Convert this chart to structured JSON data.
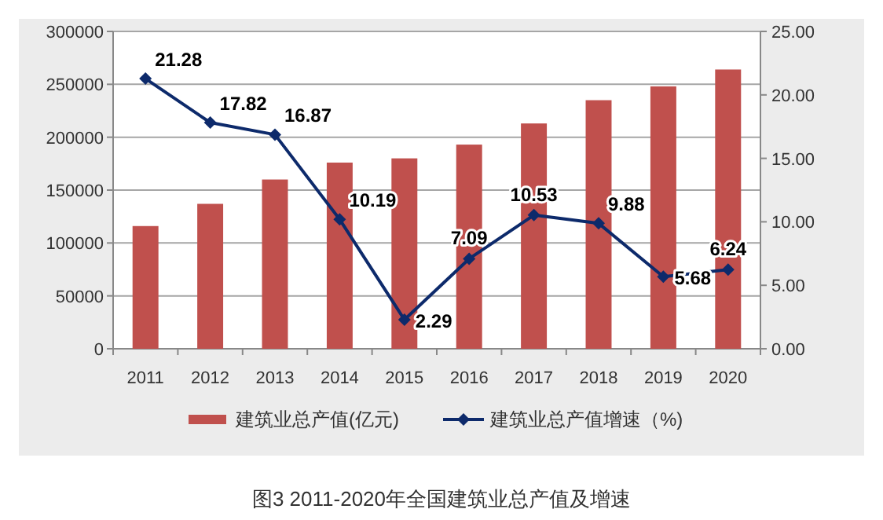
{
  "chart_data": {
    "type": "bar",
    "title": "图3  2011-2020年全国建筑业总产值及增速",
    "categories": [
      "2011",
      "2012",
      "2013",
      "2014",
      "2015",
      "2016",
      "2017",
      "2018",
      "2019",
      "2020"
    ],
    "series": [
      {
        "name": "建筑业总产值(亿元)",
        "color": "#c0504d",
        "values": [
          116000,
          137000,
          160000,
          176000,
          180000,
          193000,
          213000,
          235000,
          248000,
          264000
        ]
      },
      {
        "name": "建筑业总产值增速（%)",
        "type": "line",
        "axis": "y2",
        "color": "#0d2a6b",
        "marker": "diamond",
        "data_labels": true,
        "values": [
          21.28,
          17.82,
          16.87,
          10.19,
          2.29,
          7.09,
          10.53,
          9.88,
          5.68,
          6.24
        ]
      }
    ],
    "ylim": [
      0,
      300000
    ],
    "yticks": [
      0,
      50000,
      100000,
      150000,
      200000,
      250000,
      300000
    ],
    "y2lim": [
      0,
      25
    ],
    "y2ticks": [
      {
        "value": 0,
        "label": "0.00"
      },
      {
        "value": 5,
        "label": "5.00"
      },
      {
        "value": 10,
        "label": "10.00"
      },
      {
        "value": 15,
        "label": "15.00"
      },
      {
        "value": 20,
        "label": "20.00"
      },
      {
        "value": 25,
        "label": "25.00"
      }
    ],
    "grid": "y",
    "legend": "bottom"
  }
}
